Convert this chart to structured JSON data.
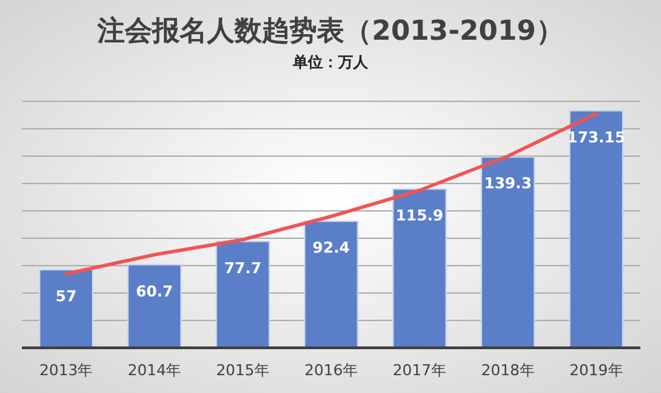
{
  "chart_data": {
    "type": "bar",
    "title": "注会报名人数趋势表（2013-2019）",
    "subtitle": "单位：万人",
    "categories": [
      "2013年",
      "2014年",
      "2015年",
      "2016年",
      "2017年",
      "2018年",
      "2019年"
    ],
    "series": [
      {
        "color": "#5a7fc8",
        "values": [
          57,
          60.7,
          77.7,
          92.4,
          115.9,
          139.3,
          173.15
        ],
        "value_labels": [
          "57",
          "60.7",
          "77.7",
          "92.4",
          "115.9",
          "139.3",
          "173.15"
        ]
      },
      {
        "type": "line",
        "color": "#f05454",
        "x": [
          "2013年",
          "2014年",
          "2015年",
          "2016年",
          "2017年",
          "2018年",
          "2019年"
        ],
        "values": [
          54,
          68,
          79,
          96,
          115,
          140,
          171
        ]
      }
    ],
    "grid": "y",
    "ylim": [
      0,
      180
    ],
    "yticks": [
      {
        "value": 0,
        "label": null
      },
      {
        "value": 20,
        "label": null
      },
      {
        "value": 40,
        "label": null
      },
      {
        "value": 60,
        "label": null
      },
      {
        "value": 80,
        "label": null
      },
      {
        "value": 100,
        "label": null
      },
      {
        "value": 120,
        "label": null
      },
      {
        "value": 140,
        "label": null
      },
      {
        "value": 160,
        "label": null
      },
      {
        "value": 180,
        "label": null
      }
    ],
    "tick_labels": "x"
  }
}
